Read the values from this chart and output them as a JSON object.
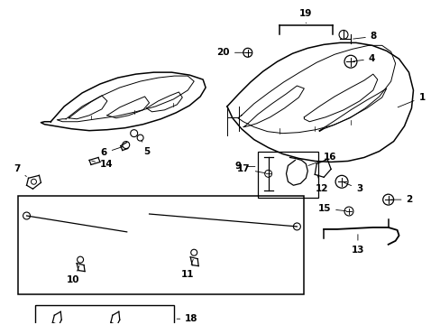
{
  "bg_color": "#ffffff",
  "fig_width": 4.89,
  "fig_height": 3.6,
  "dpi": 100,
  "label_fontsize": 7.5,
  "line_color": "#000000",
  "lw_main": 1.1,
  "lw_inner": 0.7,
  "lw_thin": 0.5
}
